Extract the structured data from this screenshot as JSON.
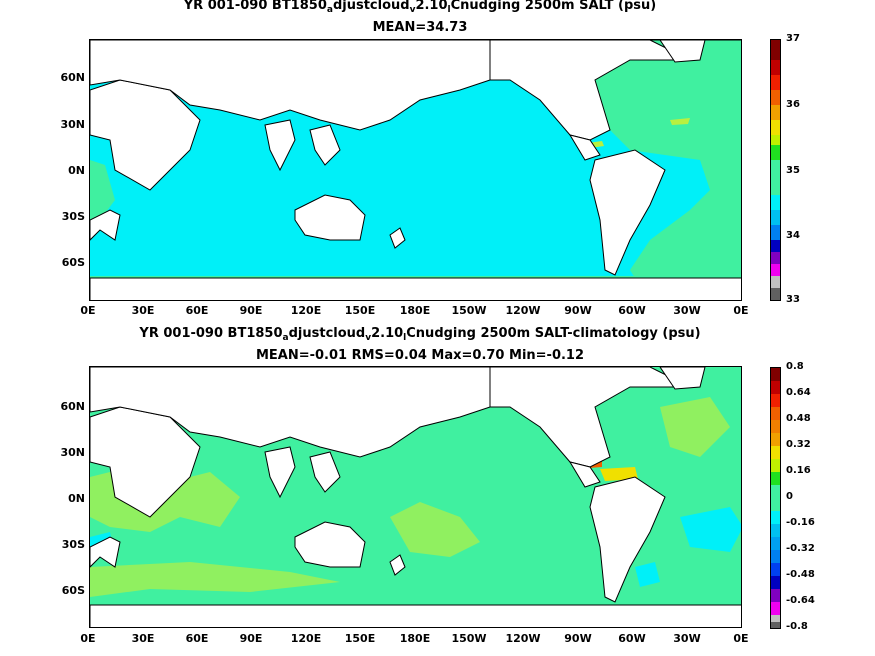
{
  "top": {
    "title_pre": "YR 001-090 BT1850",
    "title_sub1": "a",
    "title_mid": "djustcloud",
    "title_sub2": "v",
    "title_mid2": "2.10",
    "title_sub3": "l",
    "title_post": "Cnudging 2500m SALT (psu)",
    "stats": "MEAN=34.73",
    "colorbar_labels": [
      "37",
      "36",
      "35",
      "34",
      "33"
    ]
  },
  "bottom": {
    "title_pre": "YR 001-090 BT1850",
    "title_sub1": "a",
    "title_mid": "djustcloud",
    "title_sub2": "v",
    "title_mid2": "2.10",
    "title_sub3": "l",
    "title_post": "Cnudging 2500m SALT-climatology (psu)",
    "stats": "MEAN=-0.01   RMS=0.04   Max=0.70   Min=-0.12",
    "colorbar_labels": [
      "0.8",
      "0.64",
      "0.48",
      "0.32",
      "0.16",
      "0",
      "-0.16",
      "-0.32",
      "-0.48",
      "-0.64",
      "-0.8"
    ]
  },
  "lat_labels": [
    "60N",
    "30N",
    "0N",
    "30S",
    "60S"
  ],
  "lon_labels": [
    "0E",
    "30E",
    "60E",
    "90E",
    "120E",
    "150E",
    "180E",
    "150W",
    "120W",
    "90W",
    "60W",
    "30W",
    "0E"
  ],
  "colors": {
    "top_ocean": "#00f0f8",
    "top_atlantic": "#40f0a0",
    "top_high": "#b8f040",
    "bottom_ocean": "#40f0a0",
    "bottom_pos": "#90f060",
    "bottom_neg": "#00f0f8",
    "colorbar": [
      "#800000",
      "#c00000",
      "#f02000",
      "#f06000",
      "#f0a000",
      "#f0e000",
      "#c0f000",
      "#20e020",
      "#40f0a0",
      "#00f0f8",
      "#00c0f0",
      "#0080f0",
      "#0040f0",
      "#0000c0",
      "#8000c0",
      "#f000f0",
      "#c0c0c0",
      "#606060"
    ]
  }
}
